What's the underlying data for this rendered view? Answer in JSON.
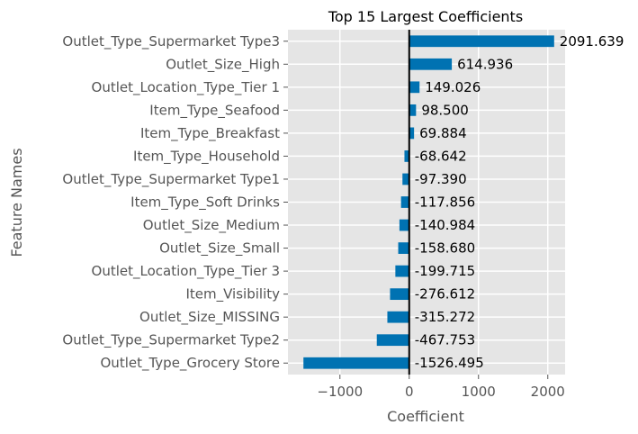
{
  "chart_data": {
    "type": "bar",
    "orientation": "horizontal",
    "title": "Top 15 Largest Coefficients",
    "xlabel": "Coefficient",
    "ylabel": "Feature Names",
    "categories": [
      "Outlet_Type_Supermarket Type3",
      "Outlet_Size_High",
      "Outlet_Location_Type_Tier 1",
      "Item_Type_Seafood",
      "Item_Type_Breakfast",
      "Item_Type_Household",
      "Outlet_Type_Supermarket Type1",
      "Item_Type_Soft Drinks",
      "Outlet_Size_Medium",
      "Outlet_Size_Small",
      "Outlet_Location_Type_Tier 3",
      "Item_Visibility",
      "Outlet_Size_MISSING",
      "Outlet_Type_Supermarket Type2",
      "Outlet_Type_Grocery Store"
    ],
    "values": [
      2091.639,
      614.936,
      149.026,
      98.5,
      69.884,
      -68.642,
      -97.39,
      -117.856,
      -140.984,
      -158.68,
      -199.715,
      -276.612,
      -315.272,
      -467.753,
      -1526.495
    ],
    "value_labels": [
      "2091.639",
      "614.936",
      "149.026",
      "98.500",
      "69.884",
      "-68.642",
      "-97.390",
      "-117.856",
      "-140.984",
      "-158.680",
      "-199.715",
      "-276.612",
      "-315.272",
      "-467.753",
      "-1526.495"
    ],
    "xticks": [
      -1000,
      0,
      1000,
      2000
    ],
    "xtick_labels": [
      "−1000",
      "0",
      "1000",
      "2000"
    ],
    "xlim": [
      -1750,
      2250
    ],
    "grid": true,
    "zero_line": true,
    "bar_color": "#0072B2",
    "background_color": "#E5E5E5",
    "grid_color": "#FFFFFF"
  }
}
